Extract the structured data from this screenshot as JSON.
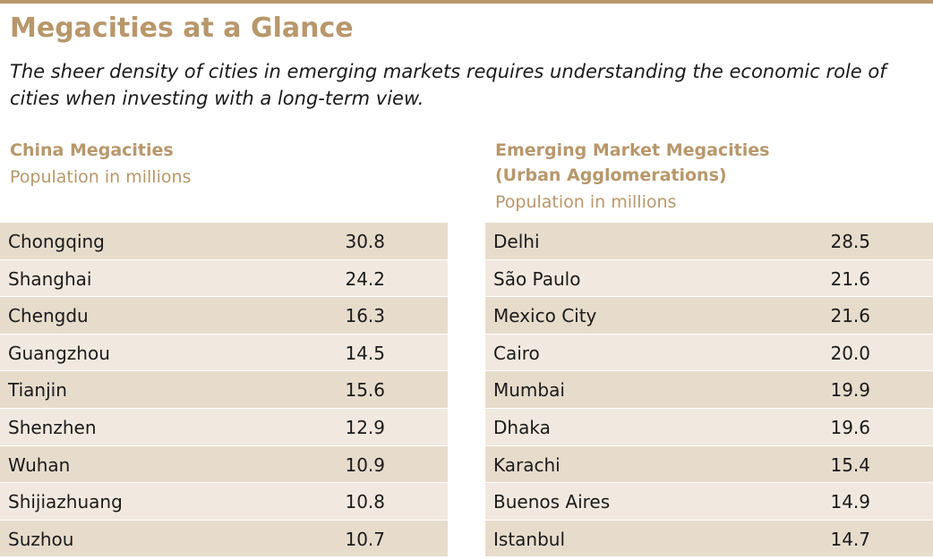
{
  "title": "Megacities at a Glance",
  "subtitle": "The sheer density of cities in emerging markets requires understanding the economic role of cities when investing with a long-term view.",
  "colors": {
    "accent": "#b8976b",
    "row_dark": "#e7dccc",
    "row_light": "#f1e9df",
    "text": "#1a1a1a"
  },
  "chart_data": [
    {
      "type": "table",
      "title": "China Megacities",
      "title_lines": [
        "China Megacities"
      ],
      "unit": "Population in millions",
      "categories": [
        "Chongqing",
        "Shanghai",
        "Chengdu",
        "Guangzhou",
        "Tianjin",
        "Shenzhen",
        "Wuhan",
        "Shijiazhuang",
        "Suzhou"
      ],
      "values": [
        "30.8",
        "24.2",
        "16.3",
        "14.5",
        "15.6",
        "12.9",
        "10.9",
        "10.8",
        "10.7"
      ]
    },
    {
      "type": "table",
      "title": "Emerging Market Megacities (Urban Agglomerations)",
      "title_lines": [
        "Emerging Market Megacities",
        "(Urban Agglomerations)"
      ],
      "unit": "Population in millions",
      "categories": [
        "Delhi",
        "São Paulo",
        "Mexico City",
        "Cairo",
        "Mumbai",
        "Dhaka",
        "Karachi",
        "Buenos Aires",
        "Istanbul"
      ],
      "values": [
        "28.5",
        "21.6",
        "21.6",
        "20.0",
        "19.9",
        "19.6",
        "15.4",
        "14.9",
        "14.7"
      ]
    }
  ]
}
